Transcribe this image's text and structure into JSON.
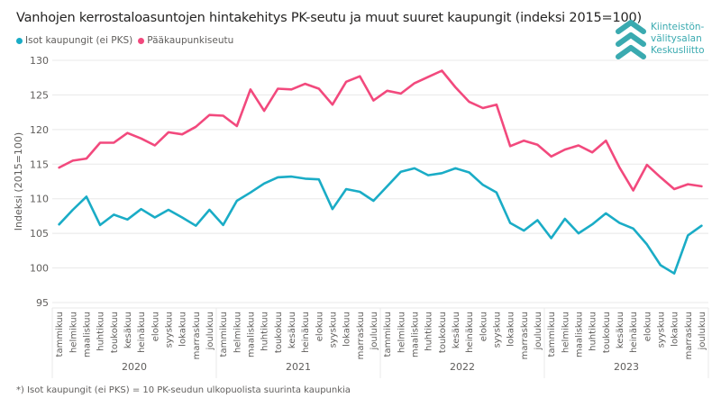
{
  "title": "Vanhojen kerrostaloasuntojen hintakehitys PK-seutu ja muut suuret kaupungit (indeksi 2015=100)",
  "logo": {
    "lines": [
      "Kiinteistön-",
      "välitysalan",
      "Keskusliitto"
    ],
    "color": "#3aaab0"
  },
  "footnote": "*) Isot kaupungit (ei PKS) = 10 PK-seudun ulkopuolista suurinta kaupunkia",
  "chart_data": {
    "type": "line",
    "title": "Vanhojen kerrostaloasuntojen hintakehitys PK-seutu ja muut suuret kaupungit (indeksi 2015=100)",
    "xlabel": "",
    "ylabel": "Indeksi (2015=100)",
    "ylim": [
      95,
      130
    ],
    "yticks": [
      95,
      100,
      105,
      110,
      115,
      120,
      125,
      130
    ],
    "grid": true,
    "legend_position": "top-left",
    "years": [
      "2020",
      "2021",
      "2022",
      "2023"
    ],
    "months": [
      "tammikuu",
      "helmikuu",
      "maaliskuu",
      "huhtikuu",
      "toukokuu",
      "kesäkuu",
      "heinäkuu",
      "elokuu",
      "syyskuu",
      "lokakuu",
      "marraskuu",
      "joulukuu"
    ],
    "series": [
      {
        "name": "Isot kaupungit (ei PKS)",
        "color": "#1aacc6",
        "values": [
          106.3,
          108.4,
          110.3,
          106.2,
          107.7,
          107.0,
          108.5,
          107.3,
          108.4,
          107.3,
          106.1,
          108.4,
          106.2,
          109.7,
          110.9,
          112.2,
          113.1,
          113.2,
          112.9,
          112.8,
          108.5,
          111.4,
          111.0,
          109.7,
          111.8,
          113.9,
          114.4,
          113.4,
          113.7,
          114.4,
          113.8,
          112.0,
          110.9,
          106.5,
          105.4,
          106.9,
          104.3,
          107.1,
          105.0,
          106.3,
          107.9,
          106.5,
          105.7,
          103.4,
          100.4,
          99.2,
          104.7,
          106.1
        ]
      },
      {
        "name": "Pääkaupunkiseutu",
        "color": "#f2497d",
        "values": [
          114.5,
          115.5,
          115.8,
          118.1,
          118.1,
          119.5,
          118.7,
          117.7,
          119.6,
          119.3,
          120.4,
          122.1,
          122.0,
          120.5,
          125.8,
          122.7,
          125.9,
          125.8,
          126.6,
          125.9,
          123.6,
          126.9,
          127.7,
          124.2,
          125.6,
          125.2,
          126.7,
          127.6,
          128.5,
          126.1,
          124.0,
          123.1,
          123.6,
          117.6,
          118.4,
          117.8,
          116.1,
          117.1,
          117.7,
          116.7,
          118.4,
          114.5,
          111.2,
          114.9,
          113.1,
          111.4,
          112.1,
          111.8
        ]
      }
    ]
  }
}
